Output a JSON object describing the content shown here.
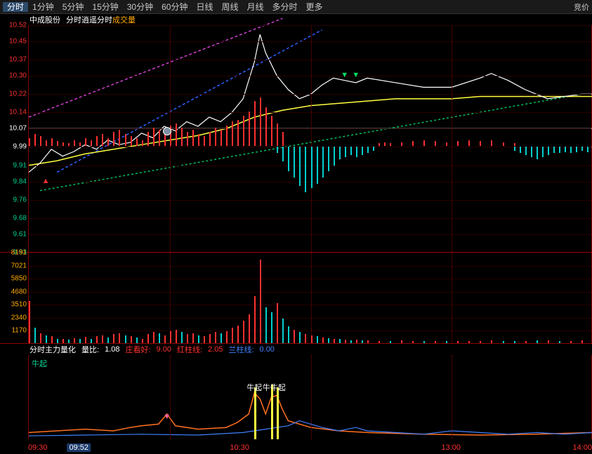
{
  "topbar": {
    "tabs": [
      "分时",
      "1分钟",
      "5分钟",
      "15分钟",
      "30分钟",
      "60分钟",
      "日线",
      "周线",
      "月线",
      "多分时",
      "更多"
    ],
    "active": 0,
    "right": "竞价"
  },
  "header": {
    "stock": "中成股份",
    "items": [
      {
        "label": "分时",
        "color": "#ffffff"
      },
      {
        "label": "逍遥分时",
        "color": "#ffffff"
      },
      {
        "label": "成交量",
        "color": "#ffaa00"
      }
    ]
  },
  "price": {
    "ymin": 9.53,
    "ymax": 10.52,
    "ticks": [
      {
        "v": 10.52,
        "c": "#ff3030"
      },
      {
        "v": 10.45,
        "c": "#ff3030"
      },
      {
        "v": 10.37,
        "c": "#ff3030"
      },
      {
        "v": 10.3,
        "c": "#ff3030"
      },
      {
        "v": 10.22,
        "c": "#ff3030"
      },
      {
        "v": 10.14,
        "c": "#ff3030"
      },
      {
        "v": 10.07,
        "c": "#ffffff"
      },
      {
        "v": 9.99,
        "c": "#ffffff"
      },
      {
        "v": 9.91,
        "c": "#00d090"
      },
      {
        "v": 9.84,
        "c": "#00d090"
      },
      {
        "v": 9.76,
        "c": "#00d090"
      },
      {
        "v": 9.68,
        "c": "#00d090"
      },
      {
        "v": 9.61,
        "c": "#00d090"
      },
      {
        "v": 9.53,
        "c": "#00d090"
      }
    ],
    "hline_white": 10.07,
    "hline_dashed": 9.99,
    "diag_lines": [
      {
        "x1": 0,
        "y1": 10.12,
        "x2": 0.45,
        "y2": 10.55,
        "c": "#d040d0",
        "dash": "4,3"
      },
      {
        "x1": 0.05,
        "y1": 9.88,
        "x2": 0.52,
        "y2": 10.5,
        "c": "#3060ff",
        "dash": "4,3"
      },
      {
        "x1": 0.02,
        "y1": 9.8,
        "x2": 0.98,
        "y2": 10.22,
        "c": "#00c060",
        "dash": "3,3"
      }
    ],
    "yellow_line": [
      [
        0,
        9.91
      ],
      [
        0.05,
        9.93
      ],
      [
        0.1,
        9.96
      ],
      [
        0.15,
        9.98
      ],
      [
        0.2,
        10.0
      ],
      [
        0.25,
        10.02
      ],
      [
        0.3,
        10.04
      ],
      [
        0.35,
        10.07
      ],
      [
        0.4,
        10.12
      ],
      [
        0.45,
        10.15
      ],
      [
        0.5,
        10.17
      ],
      [
        0.55,
        10.18
      ],
      [
        0.6,
        10.19
      ],
      [
        0.65,
        10.2
      ],
      [
        0.7,
        10.2
      ],
      [
        0.75,
        10.2
      ],
      [
        0.8,
        10.21
      ],
      [
        0.85,
        10.21
      ],
      [
        0.9,
        10.21
      ],
      [
        0.95,
        10.21
      ],
      [
        1.0,
        10.21
      ]
    ],
    "white_line": [
      [
        0,
        9.88
      ],
      [
        0.02,
        9.92
      ],
      [
        0.04,
        9.98
      ],
      [
        0.06,
        9.95
      ],
      [
        0.08,
        9.97
      ],
      [
        0.1,
        10.0
      ],
      [
        0.12,
        9.98
      ],
      [
        0.14,
        10.02
      ],
      [
        0.16,
        10.0
      ],
      [
        0.18,
        10.01
      ],
      [
        0.2,
        10.05
      ],
      [
        0.22,
        10.03
      ],
      [
        0.24,
        10.08
      ],
      [
        0.26,
        10.06
      ],
      [
        0.28,
        10.1
      ],
      [
        0.3,
        10.08
      ],
      [
        0.32,
        10.12
      ],
      [
        0.34,
        10.1
      ],
      [
        0.36,
        10.14
      ],
      [
        0.38,
        10.2
      ],
      [
        0.4,
        10.36
      ],
      [
        0.41,
        10.48
      ],
      [
        0.42,
        10.4
      ],
      [
        0.43,
        10.35
      ],
      [
        0.44,
        10.3
      ],
      [
        0.46,
        10.24
      ],
      [
        0.48,
        10.2
      ],
      [
        0.5,
        10.22
      ],
      [
        0.52,
        10.26
      ],
      [
        0.54,
        10.29
      ],
      [
        0.56,
        10.28
      ],
      [
        0.58,
        10.27
      ],
      [
        0.6,
        10.29
      ],
      [
        0.65,
        10.27
      ],
      [
        0.7,
        10.25
      ],
      [
        0.75,
        10.25
      ],
      [
        0.8,
        10.29
      ],
      [
        0.82,
        10.31
      ],
      [
        0.85,
        10.28
      ],
      [
        0.88,
        10.24
      ],
      [
        0.92,
        10.2
      ],
      [
        0.95,
        10.21
      ],
      [
        0.98,
        10.22
      ],
      [
        1.0,
        10.22
      ]
    ],
    "red_bars": [
      [
        0.0,
        0.08
      ],
      [
        0.01,
        0.12
      ],
      [
        0.02,
        0.1
      ],
      [
        0.03,
        0.06
      ],
      [
        0.04,
        0.08
      ],
      [
        0.05,
        0.05
      ],
      [
        0.06,
        0.04
      ],
      [
        0.07,
        0.03
      ],
      [
        0.08,
        0.06
      ],
      [
        0.09,
        0.04
      ],
      [
        0.1,
        0.08
      ],
      [
        0.11,
        0.06
      ],
      [
        0.12,
        0.1
      ],
      [
        0.13,
        0.12
      ],
      [
        0.14,
        0.08
      ],
      [
        0.15,
        0.14
      ],
      [
        0.16,
        0.16
      ],
      [
        0.17,
        0.12
      ],
      [
        0.18,
        0.1
      ],
      [
        0.19,
        0.08
      ],
      [
        0.2,
        0.06
      ],
      [
        0.21,
        0.14
      ],
      [
        0.22,
        0.18
      ],
      [
        0.23,
        0.16
      ],
      [
        0.24,
        0.12
      ],
      [
        0.25,
        0.2
      ],
      [
        0.26,
        0.22
      ],
      [
        0.27,
        0.18
      ],
      [
        0.28,
        0.14
      ],
      [
        0.29,
        0.16
      ],
      [
        0.3,
        0.12
      ],
      [
        0.31,
        0.1
      ],
      [
        0.32,
        0.14
      ],
      [
        0.33,
        0.18
      ],
      [
        0.34,
        0.16
      ],
      [
        0.35,
        0.2
      ],
      [
        0.36,
        0.24
      ],
      [
        0.37,
        0.26
      ],
      [
        0.38,
        0.3
      ],
      [
        0.39,
        0.34
      ],
      [
        0.4,
        0.44
      ],
      [
        0.41,
        0.48
      ],
      [
        0.42,
        0.38
      ],
      [
        0.43,
        0.3
      ],
      [
        0.44,
        0.22
      ],
      [
        0.45,
        0.14
      ],
      [
        0.62,
        0.03
      ],
      [
        0.63,
        0.04
      ],
      [
        0.64,
        0.03
      ],
      [
        0.66,
        0.04
      ],
      [
        0.68,
        0.05
      ],
      [
        0.7,
        0.06
      ],
      [
        0.72,
        0.05
      ],
      [
        0.74,
        0.04
      ],
      [
        0.76,
        0.05
      ],
      [
        0.78,
        0.06
      ],
      [
        0.8,
        0.05
      ],
      [
        0.82,
        0.06
      ],
      [
        0.84,
        0.04
      ],
      [
        0.86,
        0.03
      ]
    ],
    "cyan_bars": [
      [
        0.44,
        0.06
      ],
      [
        0.45,
        0.14
      ],
      [
        0.46,
        0.24
      ],
      [
        0.47,
        0.3
      ],
      [
        0.48,
        0.38
      ],
      [
        0.49,
        0.44
      ],
      [
        0.5,
        0.4
      ],
      [
        0.51,
        0.36
      ],
      [
        0.52,
        0.3
      ],
      [
        0.53,
        0.24
      ],
      [
        0.54,
        0.18
      ],
      [
        0.55,
        0.12
      ],
      [
        0.56,
        0.1
      ],
      [
        0.57,
        0.08
      ],
      [
        0.58,
        0.1
      ],
      [
        0.59,
        0.08
      ],
      [
        0.6,
        0.06
      ],
      [
        0.61,
        0.04
      ],
      [
        0.86,
        0.04
      ],
      [
        0.87,
        0.06
      ],
      [
        0.88,
        0.08
      ],
      [
        0.89,
        0.1
      ],
      [
        0.9,
        0.12
      ],
      [
        0.91,
        0.1
      ],
      [
        0.92,
        0.08
      ],
      [
        0.93,
        0.06
      ],
      [
        0.94,
        0.06
      ],
      [
        0.95,
        0.05
      ],
      [
        0.96,
        0.06
      ],
      [
        0.97,
        0.05
      ],
      [
        0.98,
        0.04
      ],
      [
        0.99,
        0.05
      ]
    ],
    "arrows_down": [
      0.56,
      0.58
    ],
    "arrow_up": 0.03,
    "circle_marker": 0.245
  },
  "volume": {
    "ticks": [
      8191,
      7021,
      5850,
      4680,
      3510,
      2340,
      1170
    ],
    "ymax": 8191,
    "bars": [
      [
        0.0,
        3800,
        "#ff3030"
      ],
      [
        0.01,
        1400,
        "#00d0d0"
      ],
      [
        0.02,
        900,
        "#ff3030"
      ],
      [
        0.03,
        700,
        "#00d0d0"
      ],
      [
        0.04,
        600,
        "#ff3030"
      ],
      [
        0.05,
        400,
        "#00d0d0"
      ],
      [
        0.06,
        350,
        "#ff3030"
      ],
      [
        0.07,
        300,
        "#00d0d0"
      ],
      [
        0.08,
        450,
        "#ff3030"
      ],
      [
        0.09,
        350,
        "#00d0d0"
      ],
      [
        0.1,
        550,
        "#ff3030"
      ],
      [
        0.11,
        400,
        "#00d0d0"
      ],
      [
        0.12,
        600,
        "#ff3030"
      ],
      [
        0.13,
        700,
        "#ff3030"
      ],
      [
        0.14,
        500,
        "#00d0d0"
      ],
      [
        0.15,
        800,
        "#ff3030"
      ],
      [
        0.16,
        900,
        "#ff3030"
      ],
      [
        0.17,
        700,
        "#00d0d0"
      ],
      [
        0.18,
        600,
        "#ff3030"
      ],
      [
        0.19,
        500,
        "#00d0d0"
      ],
      [
        0.2,
        400,
        "#ff3030"
      ],
      [
        0.21,
        800,
        "#ff3030"
      ],
      [
        0.22,
        1000,
        "#ff3030"
      ],
      [
        0.23,
        900,
        "#00d0d0"
      ],
      [
        0.24,
        700,
        "#ff3030"
      ],
      [
        0.25,
        1100,
        "#ff3030"
      ],
      [
        0.26,
        1200,
        "#ff3030"
      ],
      [
        0.27,
        1000,
        "#00d0d0"
      ],
      [
        0.28,
        800,
        "#ff3030"
      ],
      [
        0.29,
        900,
        "#ff3030"
      ],
      [
        0.3,
        700,
        "#00d0d0"
      ],
      [
        0.31,
        600,
        "#ff3030"
      ],
      [
        0.32,
        800,
        "#ff3030"
      ],
      [
        0.33,
        1000,
        "#ff3030"
      ],
      [
        0.34,
        900,
        "#00d0d0"
      ],
      [
        0.35,
        1100,
        "#ff3030"
      ],
      [
        0.36,
        1400,
        "#ff3030"
      ],
      [
        0.37,
        1600,
        "#ff3030"
      ],
      [
        0.38,
        2000,
        "#ff3030"
      ],
      [
        0.39,
        2600,
        "#ff3030"
      ],
      [
        0.4,
        4200,
        "#ff3030"
      ],
      [
        0.41,
        7500,
        "#ff3030"
      ],
      [
        0.42,
        3200,
        "#00d0d0"
      ],
      [
        0.43,
        2800,
        "#00d0d0"
      ],
      [
        0.44,
        3600,
        "#ff3030"
      ],
      [
        0.45,
        2200,
        "#00d0d0"
      ],
      [
        0.46,
        1500,
        "#00d0d0"
      ],
      [
        0.47,
        1200,
        "#ff3030"
      ],
      [
        0.48,
        1000,
        "#00d0d0"
      ],
      [
        0.49,
        800,
        "#ff3030"
      ],
      [
        0.5,
        700,
        "#ff3030"
      ],
      [
        0.51,
        600,
        "#00d0d0"
      ],
      [
        0.52,
        500,
        "#ff3030"
      ],
      [
        0.53,
        450,
        "#00d0d0"
      ],
      [
        0.54,
        400,
        "#ff3030"
      ],
      [
        0.55,
        350,
        "#00d0d0"
      ],
      [
        0.56,
        300,
        "#ff3030"
      ],
      [
        0.57,
        280,
        "#00d0d0"
      ],
      [
        0.58,
        300,
        "#ff3030"
      ],
      [
        0.59,
        260,
        "#00d0d0"
      ],
      [
        0.6,
        240,
        "#ff3030"
      ],
      [
        0.62,
        220,
        "#ff3030"
      ],
      [
        0.64,
        200,
        "#00d0d0"
      ],
      [
        0.66,
        240,
        "#ff3030"
      ],
      [
        0.68,
        220,
        "#ff3030"
      ],
      [
        0.7,
        200,
        "#00d0d0"
      ],
      [
        0.72,
        180,
        "#ff3030"
      ],
      [
        0.74,
        160,
        "#00d0d0"
      ],
      [
        0.76,
        180,
        "#ff3030"
      ],
      [
        0.78,
        200,
        "#ff3030"
      ],
      [
        0.8,
        220,
        "#ff3030"
      ],
      [
        0.82,
        240,
        "#ff3030"
      ],
      [
        0.84,
        200,
        "#00d0d0"
      ],
      [
        0.86,
        180,
        "#00d0d0"
      ],
      [
        0.88,
        220,
        "#ff3030"
      ],
      [
        0.9,
        260,
        "#00d0d0"
      ],
      [
        0.92,
        240,
        "#ff3030"
      ],
      [
        0.94,
        200,
        "#00d0d0"
      ],
      [
        0.96,
        220,
        "#ff3030"
      ],
      [
        0.98,
        240,
        "#ff3030"
      ]
    ]
  },
  "indicator": {
    "header": [
      {
        "label": "分时主力量化",
        "color": "#ffffff"
      },
      {
        "label": "量比:",
        "color": "#ffffff"
      },
      {
        "label": "1.08",
        "color": "#ffffff"
      },
      {
        "label": "庄看好:",
        "color": "#ff3030"
      },
      {
        "label": "9.00",
        "color": "#ff3030"
      },
      {
        "label": "红柱线:",
        "color": "#ff3030"
      },
      {
        "label": "2.05",
        "color": "#ff3030"
      },
      {
        "label": "兰柱线:",
        "color": "#4080ff"
      },
      {
        "label": "0.00",
        "color": "#4080ff"
      }
    ],
    "label_left": "牛起",
    "orange_line": [
      [
        0,
        0.08
      ],
      [
        0.05,
        0.1
      ],
      [
        0.1,
        0.12
      ],
      [
        0.15,
        0.1
      ],
      [
        0.18,
        0.14
      ],
      [
        0.2,
        0.16
      ],
      [
        0.23,
        0.18
      ],
      [
        0.245,
        0.3
      ],
      [
        0.26,
        0.16
      ],
      [
        0.3,
        0.12
      ],
      [
        0.35,
        0.14
      ],
      [
        0.37,
        0.2
      ],
      [
        0.39,
        0.3
      ],
      [
        0.4,
        0.55
      ],
      [
        0.41,
        0.48
      ],
      [
        0.42,
        0.3
      ],
      [
        0.43,
        0.5
      ],
      [
        0.44,
        0.52
      ],
      [
        0.45,
        0.35
      ],
      [
        0.46,
        0.22
      ],
      [
        0.48,
        0.18
      ],
      [
        0.5,
        0.14
      ],
      [
        0.55,
        0.1
      ],
      [
        0.6,
        0.08
      ],
      [
        0.7,
        0.06
      ],
      [
        0.8,
        0.05
      ],
      [
        0.9,
        0.06
      ],
      [
        1.0,
        0.08
      ]
    ],
    "blue_line": [
      [
        0,
        0.04
      ],
      [
        0.1,
        0.05
      ],
      [
        0.2,
        0.06
      ],
      [
        0.3,
        0.05
      ],
      [
        0.38,
        0.08
      ],
      [
        0.4,
        0.1
      ],
      [
        0.42,
        0.12
      ],
      [
        0.44,
        0.14
      ],
      [
        0.46,
        0.16
      ],
      [
        0.48,
        0.22
      ],
      [
        0.5,
        0.18
      ],
      [
        0.52,
        0.14
      ],
      [
        0.55,
        0.1
      ],
      [
        0.58,
        0.14
      ],
      [
        0.6,
        0.1
      ],
      [
        0.65,
        0.08
      ],
      [
        0.7,
        0.06
      ],
      [
        0.75,
        0.1
      ],
      [
        0.8,
        0.08
      ],
      [
        0.85,
        0.06
      ],
      [
        0.9,
        0.08
      ],
      [
        0.95,
        0.06
      ],
      [
        1.0,
        0.08
      ]
    ],
    "yellow_spikes": [
      [
        0.4,
        0.62
      ],
      [
        0.43,
        0.65
      ],
      [
        0.44,
        0.62
      ]
    ],
    "markers": [
      {
        "x": 0.4,
        "label": "牛起"
      },
      {
        "x": 0.435,
        "label": "牛牛起"
      }
    ],
    "pink_marker_x": 0.245
  },
  "time_axis": {
    "labels": [
      {
        "x": 0,
        "label": "09:30",
        "hl": false
      },
      {
        "x": 0.09,
        "label": "09:52",
        "hl": true
      },
      {
        "x": 0.375,
        "label": "10:30",
        "hl": false
      },
      {
        "x": 0.75,
        "label": "13:00",
        "hl": false
      },
      {
        "x": 1.0,
        "label": "14:00",
        "hl": false
      }
    ],
    "color": "#ff3030"
  },
  "colors": {
    "bg": "#000000",
    "grid": "#2a0000",
    "border": "#8b0000",
    "white": "#ffffff",
    "yellow": "#ffff40",
    "red": "#ff3030",
    "cyan": "#00d0d0",
    "green": "#00d090",
    "orange": "#ff7020",
    "blue": "#4080ff"
  }
}
